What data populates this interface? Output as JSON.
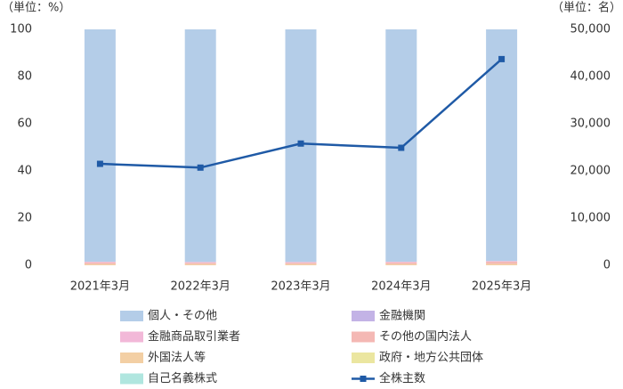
{
  "chart_data": {
    "type": "bar",
    "y_unit": "（単位：%）",
    "y2_unit": "（単位：名）",
    "categories": [
      "2021年3月",
      "2022年3月",
      "2023年3月",
      "2024年3月",
      "2025年3月"
    ],
    "series": [
      {
        "name": "個人・その他",
        "color": "#b4cde8",
        "values": [
          98.5,
          98.6,
          98.6,
          98.5,
          98.2
        ]
      },
      {
        "name": "金融機関",
        "color": "#c3b3e6",
        "values": [
          0,
          0,
          0,
          0,
          0
        ]
      },
      {
        "name": "金融商品取引業者",
        "color": "#f2b8d8",
        "values": [
          0.3,
          0.3,
          0.3,
          0.3,
          0.3
        ]
      },
      {
        "name": "その他の国内法人",
        "color": "#f4b8b4",
        "values": [
          0.7,
          0.6,
          0.6,
          0.7,
          0.9
        ]
      },
      {
        "name": "外国法人等",
        "color": "#f3cfa4",
        "values": [
          0.5,
          0.5,
          0.5,
          0.5,
          0.6
        ]
      },
      {
        "name": "政府・地方公共団体",
        "color": "#ebe6a0",
        "values": [
          0,
          0,
          0,
          0,
          0
        ]
      },
      {
        "name": "自己名義株式",
        "color": "#b0e6df",
        "values": [
          0,
          0,
          0,
          0,
          0
        ]
      },
      {
        "name": "全株主数",
        "color": "#1f5aa6",
        "type": "line",
        "axis": "y2",
        "values": [
          21500,
          20700,
          25800,
          24900,
          43700
        ]
      }
    ],
    "ylim": [
      0,
      100
    ],
    "yticks": [
      0,
      20,
      40,
      60,
      80,
      100
    ],
    "y2lim": [
      0,
      50000
    ],
    "y2ticks": [
      0,
      {
        "value": 10000,
        "label": "10,000"
      },
      {
        "value": 20000,
        "label": "20,000"
      },
      {
        "value": 30000,
        "label": "30,000"
      },
      {
        "value": 40000,
        "label": "40,000"
      },
      {
        "value": 50000,
        "label": "50,000"
      }
    ]
  }
}
